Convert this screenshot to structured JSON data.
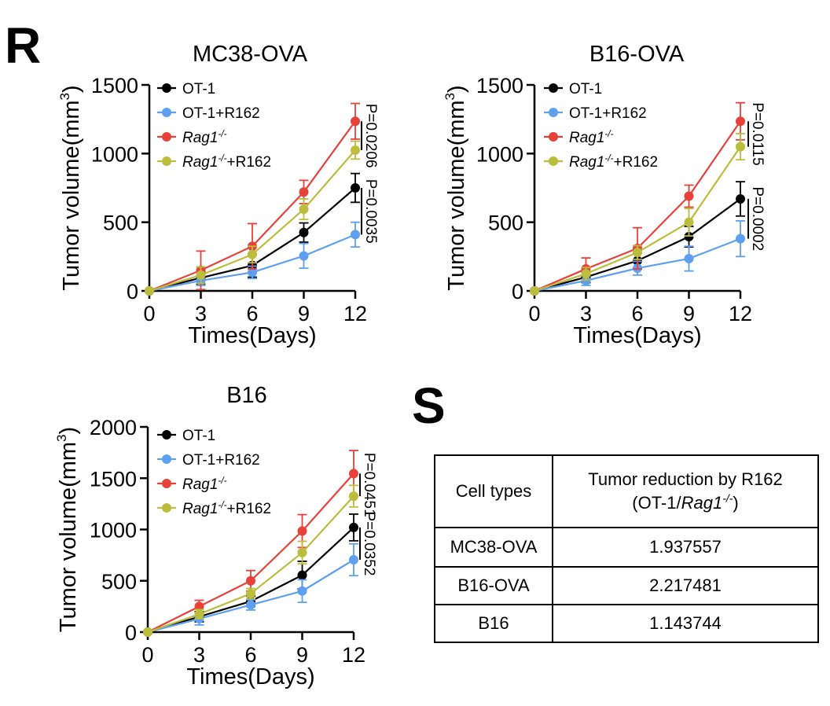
{
  "panels": {
    "r_label": "R",
    "s_label": "S"
  },
  "chart_data": [
    {
      "type": "line",
      "title": "MC38-OVA",
      "xlabel": "Times(Days)",
      "ylabel": "Tumor volume(mm3)",
      "x": [
        0,
        3,
        6,
        9,
        12
      ],
      "xlim": [
        0,
        12
      ],
      "ylim": [
        0,
        1500
      ],
      "yticks": [
        0,
        500,
        1000,
        1500
      ],
      "legend": "top-left",
      "series": [
        {
          "name": "OT-1",
          "color": "#000000",
          "values": [
            0,
            95,
            185,
            425,
            750
          ],
          "errors": [
            0,
            45,
            85,
            70,
            105
          ]
        },
        {
          "name": "OT-1+R162",
          "color": "#5ea0ef",
          "values": [
            0,
            75,
            135,
            255,
            410
          ],
          "errors": [
            0,
            35,
            45,
            90,
            90
          ]
        },
        {
          "name": "Rag1-/-",
          "color": "#e8413a",
          "values": [
            0,
            150,
            325,
            720,
            1235
          ],
          "errors": [
            0,
            140,
            165,
            85,
            130
          ]
        },
        {
          "name": "Rag1-/-+R162",
          "color": "#bcbd3c",
          "values": [
            0,
            115,
            265,
            595,
            1025
          ],
          "errors": [
            0,
            60,
            60,
            75,
            65
          ]
        }
      ],
      "annotations": [
        {
          "text": "P=0.0206",
          "between": [
            "Rag1-/-",
            "Rag1-/-+R162"
          ]
        },
        {
          "text": "P=0.0035",
          "between": [
            "OT-1",
            "OT-1+R162"
          ]
        }
      ]
    },
    {
      "type": "line",
      "title": "B16-OVA",
      "xlabel": "Times(Days)",
      "ylabel": "Tumor volume(mm3)",
      "x": [
        0,
        3,
        6,
        9,
        12
      ],
      "xlim": [
        0,
        12
      ],
      "ylim": [
        0,
        1500
      ],
      "yticks": [
        0,
        500,
        1000,
        1500
      ],
      "legend": "top-left",
      "series": [
        {
          "name": "OT-1",
          "color": "#000000",
          "values": [
            0,
            100,
            220,
            395,
            670
          ],
          "errors": [
            0,
            40,
            60,
            75,
            125
          ]
        },
        {
          "name": "OT-1+R162",
          "color": "#5ea0ef",
          "values": [
            0,
            75,
            165,
            235,
            380
          ],
          "errors": [
            0,
            35,
            50,
            90,
            130
          ]
        },
        {
          "name": "Rag1-/-",
          "color": "#e8413a",
          "values": [
            0,
            160,
            310,
            690,
            1235
          ],
          "errors": [
            0,
            80,
            150,
            80,
            135
          ]
        },
        {
          "name": "Rag1-/-+R162",
          "color": "#bcbd3c",
          "values": [
            0,
            125,
            280,
            500,
            1050
          ],
          "errors": [
            0,
            45,
            50,
            100,
            95
          ]
        }
      ],
      "annotations": [
        {
          "text": "P=0.0115",
          "between": [
            "Rag1-/-",
            "Rag1-/-+R162"
          ]
        },
        {
          "text": "P=0.0002",
          "between": [
            "OT-1",
            "OT-1+R162"
          ]
        }
      ]
    },
    {
      "type": "line",
      "title": "B16",
      "xlabel": "Times(Days)",
      "ylabel": "Tumor volume(mm3)",
      "x": [
        0,
        3,
        6,
        9,
        12
      ],
      "xlim": [
        0,
        12
      ],
      "ylim": [
        0,
        2000
      ],
      "yticks": [
        0,
        500,
        1000,
        1500,
        2000
      ],
      "legend": "top-left",
      "series": [
        {
          "name": "OT-1",
          "color": "#000000",
          "values": [
            0,
            150,
            300,
            555,
            1020
          ],
          "errors": [
            0,
            50,
            50,
            135,
            130
          ]
        },
        {
          "name": "OT-1+R162",
          "color": "#5ea0ef",
          "values": [
            0,
            130,
            265,
            400,
            705
          ],
          "errors": [
            0,
            60,
            50,
            110,
            155
          ]
        },
        {
          "name": "Rag1-/-",
          "color": "#e8413a",
          "values": [
            0,
            250,
            500,
            985,
            1545
          ],
          "errors": [
            0,
            60,
            100,
            160,
            225
          ]
        },
        {
          "name": "Rag1-/-+R162",
          "color": "#bcbd3c",
          "values": [
            0,
            175,
            375,
            775,
            1325
          ],
          "errors": [
            0,
            45,
            50,
            110,
            105
          ]
        }
      ],
      "annotations": [
        {
          "text": "P=0.0451",
          "between": [
            "Rag1-/-",
            "Rag1-/-+R162"
          ]
        },
        {
          "text": "P=0.0352",
          "between": [
            "OT-1",
            "OT-1+R162"
          ]
        }
      ]
    },
    {
      "type": "table",
      "columns": [
        "Cell types",
        "Tumor reduction by R162",
        "(OT-1/Rag1-/-)"
      ],
      "rows": [
        [
          "MC38-OVA",
          "1.937557"
        ],
        [
          "B16-OVA",
          "2.217481"
        ],
        [
          "B16",
          "1.143744"
        ]
      ]
    }
  ]
}
